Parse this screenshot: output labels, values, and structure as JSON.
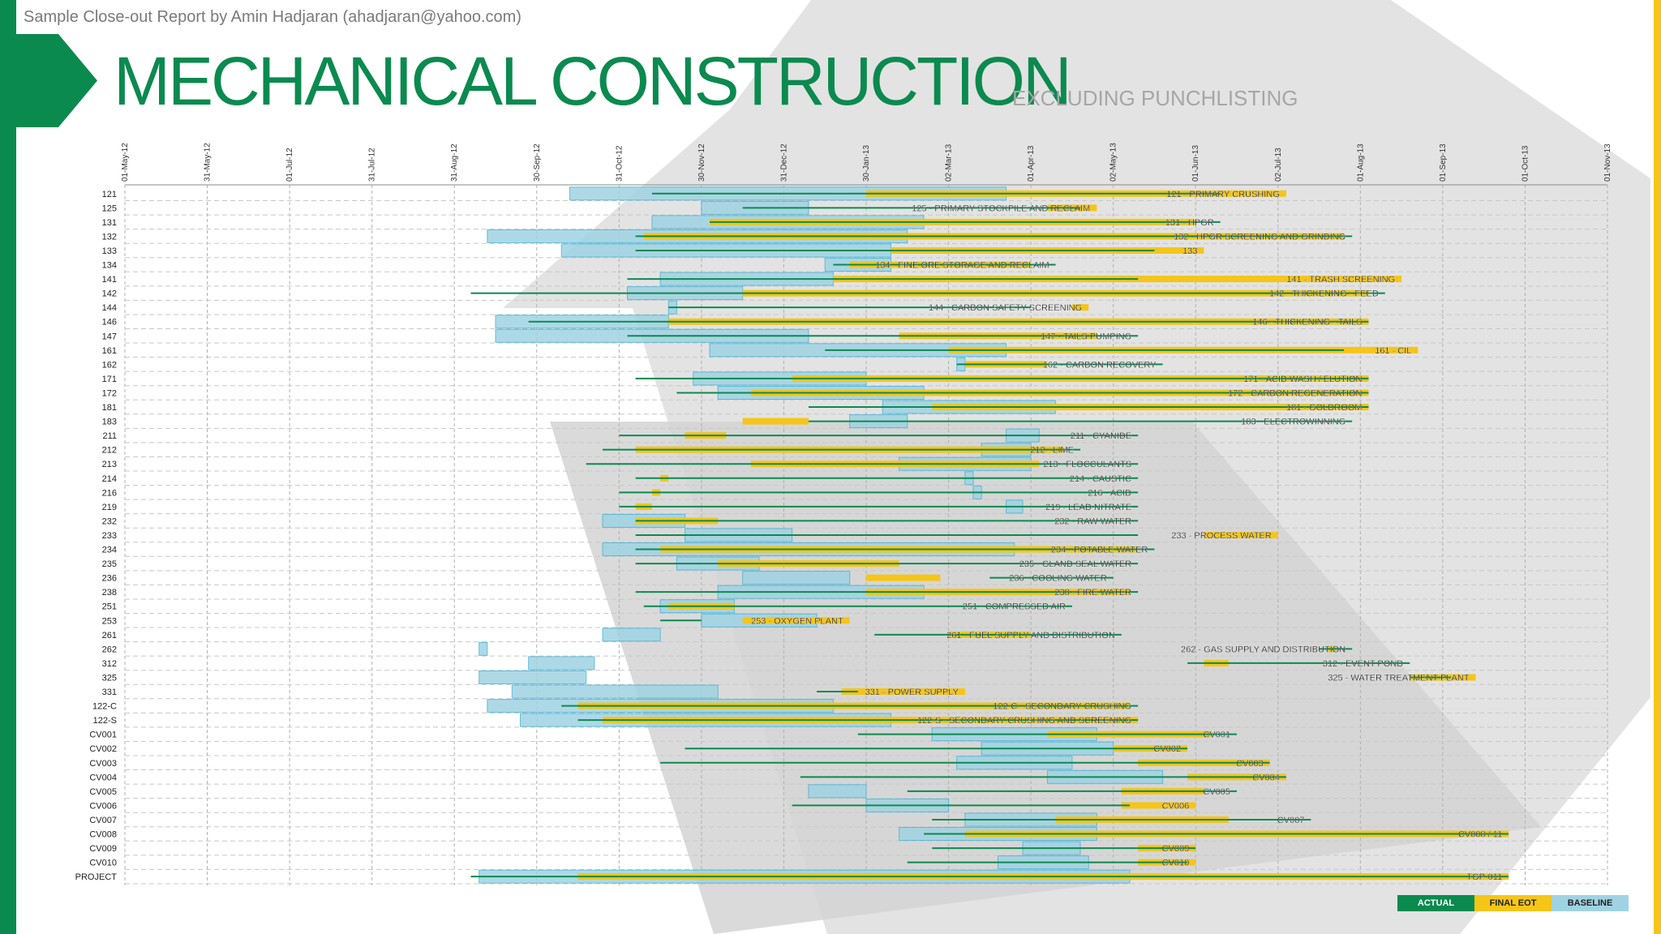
{
  "header": {
    "author_line": "Sample Close-out Report by Amin Hadjaran (ahadjaran@yahoo.com)",
    "title": "MECHANICAL CONSTRUCTION",
    "side_title": "EXCLUDING PUNCHLISTING"
  },
  "legend": {
    "actual": "ACTUAL",
    "final_eot": "FINAL EOT",
    "baseline": "BASELINE"
  },
  "colors": {
    "actual": "#0b8a4f",
    "final_eot": "#f5c518",
    "baseline": "#9fd3e3",
    "baseline_edge": "#4bb3d2",
    "grid": "#b0b0b0"
  },
  "chart_data": {
    "type": "gantt",
    "title": "MECHANICAL CONSTRUCTION",
    "x_unit": "months since 01-May-12",
    "xlim": [
      0,
      18
    ],
    "ticks": [
      "01-May-12",
      "31-May-12",
      "01-Jul-12",
      "31-Jul-12",
      "31-Aug-12",
      "30-Sep-12",
      "31-Oct-12",
      "30-Nov-12",
      "31-Dec-12",
      "30-Jan-13",
      "02-Mar-13",
      "01-Apr-13",
      "02-May-13",
      "01-Jun-13",
      "02-Jul-13",
      "01-Aug-13",
      "01-Sep-13",
      "01-Oct-13",
      "01-Nov-13"
    ],
    "rows": [
      {
        "code": "121",
        "label": "121 - PRIMARY CRUSHING",
        "b": [
          5.4,
          10.7
        ],
        "a": [
          6.4,
          13.3
        ],
        "f": [
          9.0,
          14.1
        ]
      },
      {
        "code": "125",
        "label": "125 - PRIMARY STOCKPILE AND RECLAIM",
        "b": [
          7.0,
          8.3
        ],
        "a": [
          7.5,
          11.6
        ],
        "f": [
          11.2,
          11.8
        ]
      },
      {
        "code": "131",
        "label": "131 - HPGR",
        "b": [
          6.4,
          9.7
        ],
        "a": [
          7.1,
          13.3
        ],
        "f": [
          7.1,
          13.0
        ]
      },
      {
        "code": "132",
        "label": "132 - HPGR SCREENING AND GRINDING",
        "b": [
          4.4,
          9.5
        ],
        "a": [
          6.2,
          14.9
        ],
        "f": [
          6.3,
          14.8
        ]
      },
      {
        "code": "133",
        "label": "133",
        "b": [
          5.3,
          9.3
        ],
        "a": [
          6.2,
          12.5
        ],
        "f": [
          9.3,
          13.1
        ]
      },
      {
        "code": "134",
        "label": "134 - FINE ORE STORAGE AND RECLAIM",
        "b": [
          8.5,
          9.3
        ],
        "a": [
          8.6,
          11.3
        ],
        "f": [
          8.8,
          11.0
        ]
      },
      {
        "code": "141",
        "label": "141 - TRASH SCREENING",
        "b": [
          6.5,
          8.6
        ],
        "a": [
          6.1,
          12.3
        ],
        "f": [
          8.6,
          15.5
        ]
      },
      {
        "code": "142",
        "label": "142 - THICKENING - FEED",
        "b": [
          6.1,
          7.5
        ],
        "a": [
          4.2,
          15.3
        ],
        "f": [
          7.5,
          15.1
        ]
      },
      {
        "code": "144",
        "label": "144 - CARBON SAFETY SCREENING",
        "b": [
          6.6,
          6.7
        ],
        "a": [
          6.6,
          11.0
        ],
        "f": [
          11.5,
          11.7
        ]
      },
      {
        "code": "146",
        "label": "146 - THICKENING - TAILS",
        "b": [
          4.5,
          6.6
        ],
        "a": [
          4.9,
          15.1
        ],
        "f": [
          6.6,
          15.1
        ]
      },
      {
        "code": "147",
        "label": "147 - TAILS PUMPING",
        "b": [
          4.5,
          8.3
        ],
        "a": [
          6.1,
          12.3
        ],
        "f": [
          9.4,
          11.8
        ]
      },
      {
        "code": "161",
        "label": "161 - CIL",
        "b": [
          7.1,
          10.7
        ],
        "a": [
          8.5,
          14.8
        ],
        "f": [
          10.0,
          15.7
        ]
      },
      {
        "code": "162",
        "label": "162 - CARBON RECOVERY",
        "b": [
          10.1,
          10.2
        ],
        "a": [
          10.1,
          12.6
        ],
        "f": [
          10.2,
          11.2
        ]
      },
      {
        "code": "171",
        "label": "171 - ACID WASH / ELUTION",
        "b": [
          6.9,
          9.0
        ],
        "a": [
          6.2,
          15.1
        ],
        "f": [
          8.1,
          15.1
        ]
      },
      {
        "code": "172",
        "label": "172 - CARBON REGENERATION",
        "b": [
          7.2,
          9.7
        ],
        "a": [
          6.7,
          15.1
        ],
        "f": [
          7.6,
          15.1
        ]
      },
      {
        "code": "181",
        "label": "181 - GOLDROOM",
        "b": [
          9.2,
          11.3
        ],
        "a": [
          8.3,
          15.1
        ],
        "f": [
          9.8,
          15.1
        ]
      },
      {
        "code": "183",
        "label": "183 - ELECTROWINNING",
        "b": [
          8.8,
          9.5
        ],
        "a": [
          8.3,
          14.9
        ],
        "f": [
          7.5,
          8.3
        ]
      },
      {
        "code": "211",
        "label": "211 - CYANIDE",
        "b": [
          10.7,
          11.1
        ],
        "a": [
          6.0,
          12.3
        ],
        "f": [
          6.8,
          7.3
        ]
      },
      {
        "code": "212",
        "label": "212 - LIME",
        "b": [
          10.4,
          11.0
        ],
        "a": [
          5.8,
          11.6
        ],
        "f": [
          6.2,
          11.4
        ]
      },
      {
        "code": "213",
        "label": "213 - FLOCCULANTS",
        "b": [
          9.4,
          11.0
        ],
        "a": [
          5.6,
          12.3
        ],
        "f": [
          7.6,
          11.1
        ]
      },
      {
        "code": "214",
        "label": "214 - CAUSTIC",
        "b": [
          10.2,
          10.3
        ],
        "a": [
          6.2,
          12.3
        ],
        "f": [
          6.5,
          6.6
        ]
      },
      {
        "code": "216",
        "label": "216 - ACID",
        "b": [
          10.3,
          10.4
        ],
        "a": [
          6.0,
          12.3
        ],
        "f": [
          6.4,
          6.5
        ]
      },
      {
        "code": "219",
        "label": "219 - LEAD NITRATE",
        "b": [
          10.7,
          10.9
        ],
        "a": [
          6.0,
          12.3
        ],
        "f": [
          6.2,
          6.4
        ]
      },
      {
        "code": "232",
        "label": "232 - RAW WATER",
        "b": [
          5.8,
          6.8
        ],
        "a": [
          6.2,
          12.3
        ],
        "f": [
          6.2,
          7.2
        ]
      },
      {
        "code": "233",
        "label": "233 - PROCESS WATER",
        "b": [
          6.8,
          8.1
        ],
        "a": [
          6.2,
          12.3
        ],
        "f": [
          13.1,
          14.0
        ]
      },
      {
        "code": "234",
        "label": "234 - POTABLE WATER",
        "b": [
          5.8,
          10.8
        ],
        "a": [
          6.2,
          12.5
        ],
        "f": [
          6.5,
          12.3
        ]
      },
      {
        "code": "235",
        "label": "235 - GLAND SEAL WATER",
        "b": [
          6.7,
          7.7
        ],
        "a": [
          6.2,
          12.3
        ],
        "f": [
          7.2,
          9.4
        ]
      },
      {
        "code": "236",
        "label": "236 - COOLING WATER",
        "b": [
          7.5,
          8.8
        ],
        "a": [
          10.5,
          12.0
        ],
        "f": [
          9.0,
          9.9
        ]
      },
      {
        "code": "238",
        "label": "238 - FIRE WATER",
        "b": [
          7.2,
          9.7
        ],
        "a": [
          6.2,
          12.3
        ],
        "f": [
          9.0,
          12.2
        ]
      },
      {
        "code": "251",
        "label": "251 - COMPRESSED AIR",
        "b": [
          6.5,
          7.4
        ],
        "a": [
          6.3,
          11.5
        ],
        "f": [
          6.6,
          7.4
        ]
      },
      {
        "code": "253",
        "label": "253 - OXYGEN PLANT",
        "b": [
          7.0,
          8.4
        ],
        "a": [
          6.5,
          7.0
        ],
        "f": [
          7.5,
          8.8
        ]
      },
      {
        "code": "261",
        "label": "261 - FUEL SUPPLY AND DISTRIBUTION",
        "b": [
          5.8,
          6.5
        ],
        "a": [
          9.1,
          12.1
        ],
        "f": [
          10.0,
          11.0
        ]
      },
      {
        "code": "262",
        "label": "262 - GAS SUPPLY AND DISTRIBUTION",
        "b": [
          4.3,
          4.4
        ],
        "a": [
          14.5,
          14.9
        ],
        "f": [
          14.6,
          14.7
        ]
      },
      {
        "code": "312",
        "label": "312 - EVENT POND",
        "b": [
          4.9,
          5.7
        ],
        "a": [
          12.9,
          15.6
        ],
        "f": [
          13.1,
          13.4
        ]
      },
      {
        "code": "325",
        "label": "325 - WATER TREATMENT PLANT",
        "b": [
          4.3,
          5.6
        ],
        "a": [
          15.6,
          16.1
        ],
        "f": [
          15.6,
          16.4
        ]
      },
      {
        "code": "331",
        "label": "331 - POWER SUPPLY",
        "b": [
          4.7,
          7.2
        ],
        "a": [
          8.4,
          8.9
        ],
        "f": [
          8.7,
          10.2
        ]
      },
      {
        "code": "122-C",
        "label": "122-C - SECONDARY CRUSHING",
        "b": [
          4.4,
          8.6
        ],
        "a": [
          5.3,
          12.3
        ],
        "f": [
          5.5,
          12.2
        ]
      },
      {
        "code": "122-S",
        "label": "122-S - SECONDARY CRUSHING AND SCREENING",
        "b": [
          4.8,
          9.3
        ],
        "a": [
          5.5,
          12.3
        ],
        "f": [
          5.8,
          12.3
        ]
      },
      {
        "code": "CV001",
        "label": "CV001",
        "b": [
          9.8,
          11.8
        ],
        "a": [
          8.9,
          13.5
        ],
        "f": [
          11.2,
          13.2
        ]
      },
      {
        "code": "CV002",
        "label": "CV002",
        "b": [
          10.4,
          12.0
        ],
        "a": [
          6.8,
          12.9
        ],
        "f": [
          12.0,
          12.9
        ]
      },
      {
        "code": "CV003",
        "label": "CV003",
        "b": [
          10.1,
          11.5
        ],
        "a": [
          6.5,
          13.9
        ],
        "f": [
          12.3,
          13.9
        ]
      },
      {
        "code": "CV004",
        "label": "CV004",
        "b": [
          11.2,
          12.6
        ],
        "a": [
          8.2,
          14.1
        ],
        "f": [
          12.9,
          14.1
        ]
      },
      {
        "code": "CV005",
        "label": "CV005",
        "b": [
          8.3,
          9.0
        ],
        "a": [
          9.5,
          13.5
        ],
        "f": [
          12.1,
          13.1
        ]
      },
      {
        "code": "CV006",
        "label": "CV006",
        "b": [
          9.0,
          10.0
        ],
        "a": [
          8.1,
          12.2
        ],
        "f": [
          12.1,
          13.0
        ]
      },
      {
        "code": "CV007",
        "label": "CV007",
        "b": [
          10.2,
          11.8
        ],
        "a": [
          9.8,
          14.4
        ],
        "f": [
          11.3,
          13.4
        ]
      },
      {
        "code": "CV008",
        "label": "CV008 / 11",
        "b": [
          9.4,
          11.8
        ],
        "a": [
          9.7,
          16.8
        ],
        "f": [
          10.2,
          16.8
        ]
      },
      {
        "code": "CV009",
        "label": "CV009",
        "b": [
          10.9,
          11.6
        ],
        "a": [
          9.8,
          13.0
        ],
        "f": [
          12.3,
          13.0
        ]
      },
      {
        "code": "CV010",
        "label": "CV010",
        "b": [
          10.6,
          11.7
        ],
        "a": [
          9.5,
          12.9
        ],
        "f": [
          12.3,
          13.0
        ]
      },
      {
        "code": "PROJECT",
        "label": "TGP-011",
        "b": [
          4.3,
          12.2
        ],
        "a": [
          4.2,
          16.8
        ],
        "f": [
          5.5,
          16.8
        ]
      }
    ]
  }
}
